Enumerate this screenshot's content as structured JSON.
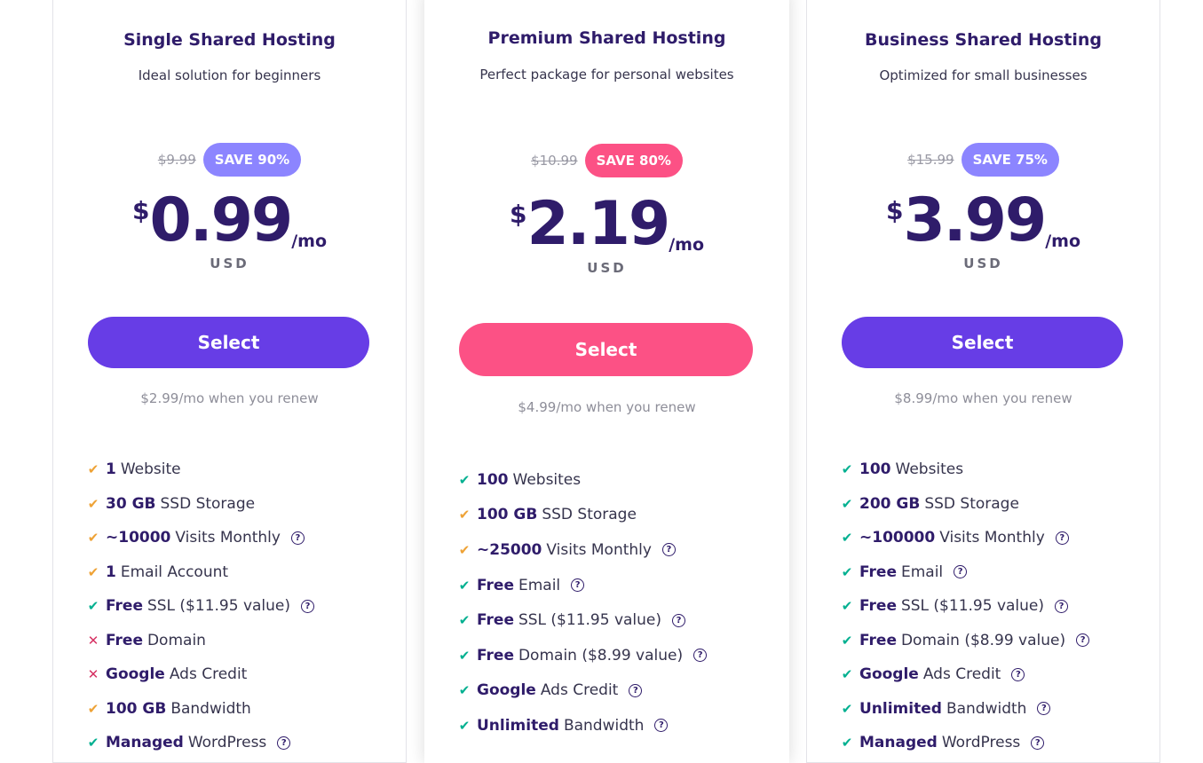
{
  "colors": {
    "purple": "#673de6",
    "pink": "#fc5185",
    "save_purple": "#8c85ff",
    "check_orange": "#eea236",
    "check_green": "#00b090",
    "cross_red": "#d63163"
  },
  "plans": [
    {
      "title": "Single Shared Hosting",
      "subtitle": "Ideal solution for beginners",
      "old_price": "$9.99",
      "save": "SAVE 90%",
      "currency": "$",
      "price": "0.99",
      "period": "/mo",
      "unit": "USD",
      "button": "Select",
      "renew": "$2.99/mo when you renew",
      "features": [
        {
          "icon": "check-orange",
          "bold": "1",
          "text": "Website",
          "help": false
        },
        {
          "icon": "check-orange",
          "bold": "30 GB",
          "text": "SSD Storage",
          "help": false
        },
        {
          "icon": "check-orange",
          "bold": "~10000",
          "text": "Visits Monthly",
          "help": true
        },
        {
          "icon": "check-orange",
          "bold": "1",
          "text": "Email Account",
          "help": false
        },
        {
          "icon": "check-green",
          "bold": "Free",
          "text": "SSL ($11.95 value)",
          "help": true
        },
        {
          "icon": "cross-red",
          "bold": "Free",
          "text": "Domain",
          "help": false
        },
        {
          "icon": "cross-red",
          "bold": "Google",
          "text": "Ads Credit",
          "help": false
        },
        {
          "icon": "check-orange",
          "bold": "100 GB",
          "text": "Bandwidth",
          "help": false
        },
        {
          "icon": "check-green",
          "bold": "Managed",
          "text": "WordPress",
          "help": true
        }
      ]
    },
    {
      "title": "Premium Shared Hosting",
      "subtitle": "Perfect package for personal websites",
      "old_price": "$10.99",
      "save": "SAVE 80%",
      "currency": "$",
      "price": "2.19",
      "period": "/mo",
      "unit": "USD",
      "button": "Select",
      "renew": "$4.99/mo when you renew",
      "features": [
        {
          "icon": "check-green",
          "bold": "100",
          "text": "Websites",
          "help": false
        },
        {
          "icon": "check-orange",
          "bold": "100 GB",
          "text": "SSD Storage",
          "help": false
        },
        {
          "icon": "check-orange",
          "bold": "~25000",
          "text": "Visits Monthly",
          "help": true
        },
        {
          "icon": "check-green",
          "bold": "Free",
          "text": "Email",
          "help": true
        },
        {
          "icon": "check-green",
          "bold": "Free",
          "text": "SSL ($11.95 value)",
          "help": true
        },
        {
          "icon": "check-green",
          "bold": "Free",
          "text": "Domain ($8.99 value)",
          "help": true
        },
        {
          "icon": "check-green",
          "bold": "Google",
          "text": "Ads Credit",
          "help": true
        },
        {
          "icon": "check-green",
          "bold": "Unlimited",
          "text": "Bandwidth",
          "help": true
        }
      ]
    },
    {
      "title": "Business Shared Hosting",
      "subtitle": "Optimized for small businesses",
      "old_price": "$15.99",
      "save": "SAVE 75%",
      "currency": "$",
      "price": "3.99",
      "period": "/mo",
      "unit": "USD",
      "button": "Select",
      "renew": "$8.99/mo when you renew",
      "features": [
        {
          "icon": "check-green",
          "bold": "100",
          "text": "Websites",
          "help": false
        },
        {
          "icon": "check-green",
          "bold": "200 GB",
          "text": "SSD Storage",
          "help": false
        },
        {
          "icon": "check-green",
          "bold": "~100000",
          "text": "Visits Monthly",
          "help": true
        },
        {
          "icon": "check-green",
          "bold": "Free",
          "text": "Email",
          "help": true
        },
        {
          "icon": "check-green",
          "bold": "Free",
          "text": "SSL ($11.95 value)",
          "help": true
        },
        {
          "icon": "check-green",
          "bold": "Free",
          "text": "Domain ($8.99 value)",
          "help": true
        },
        {
          "icon": "check-green",
          "bold": "Google",
          "text": "Ads Credit",
          "help": true
        },
        {
          "icon": "check-green",
          "bold": "Unlimited",
          "text": "Bandwidth",
          "help": true
        },
        {
          "icon": "check-green",
          "bold": "Managed",
          "text": "WordPress",
          "help": true
        }
      ]
    }
  ]
}
